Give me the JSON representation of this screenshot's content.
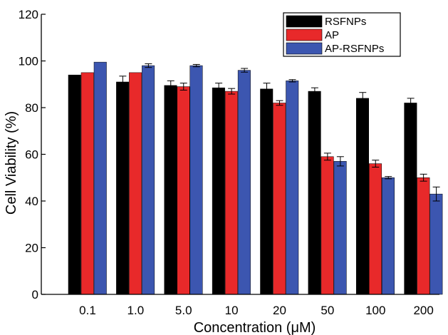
{
  "chart_data": {
    "type": "bar",
    "title": "",
    "xlabel": "Concentration (μM)",
    "ylabel": "Cell Viability (%)",
    "ylim": [
      0,
      120
    ],
    "yticks": [
      0,
      20,
      40,
      60,
      80,
      100,
      120
    ],
    "categories": [
      "0.1",
      "1.0",
      "5.0",
      "10",
      "20",
      "50",
      "100",
      "200"
    ],
    "series": [
      {
        "name": "RSFNPs",
        "color": "#000000",
        "values": [
          94,
          91,
          89.5,
          88.5,
          88,
          87,
          84,
          82
        ],
        "errors": [
          0,
          2.5,
          2,
          2,
          2.5,
          1.5,
          2.5,
          2
        ]
      },
      {
        "name": "AP",
        "color": "#e8292a",
        "values": [
          95,
          95,
          89,
          87,
          82,
          59,
          56,
          50
        ],
        "errors": [
          0,
          0,
          1.5,
          1.2,
          1,
          1.5,
          1.5,
          1.5
        ]
      },
      {
        "name": "AP-RSFNPs",
        "color": "#3c56b0",
        "values": [
          99.5,
          98,
          98,
          96,
          91.5,
          57,
          50,
          43
        ],
        "errors": [
          0,
          0.8,
          0.5,
          0.8,
          0.5,
          2,
          0.5,
          3
        ]
      }
    ],
    "legend_position": "top-right",
    "grid": false
  }
}
